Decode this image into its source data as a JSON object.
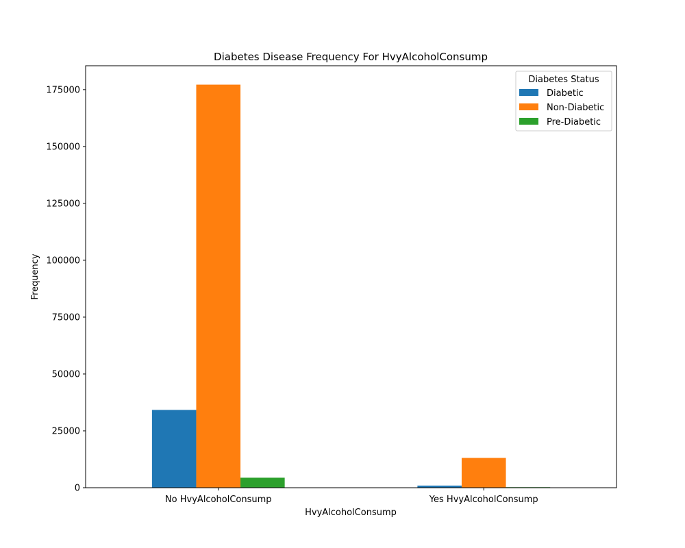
{
  "chart_data": {
    "type": "bar",
    "title": "Diabetes Disease Frequency For HvyAlcoholConsump",
    "xlabel": "HvyAlcoholConsump",
    "ylabel": "Frequency",
    "categories": [
      "No HvyAlcoholConsump",
      "Yes HvyAlcoholConsump"
    ],
    "series": [
      {
        "name": "Diabetic",
        "values": [
          34200,
          940
        ],
        "color": "#1f77b4"
      },
      {
        "name": "Non-Diabetic",
        "values": [
          177200,
          13100
        ],
        "color": "#ff7f0e"
      },
      {
        "name": "Pre-Diabetic",
        "values": [
          4400,
          230
        ],
        "color": "#2ca02c"
      }
    ],
    "ylim": [
      0,
      185500
    ],
    "yticks": [
      0,
      25000,
      50000,
      75000,
      100000,
      125000,
      150000,
      175000
    ],
    "legend": {
      "title": "Diabetes Status",
      "position": "top-right"
    },
    "grid": false
  }
}
